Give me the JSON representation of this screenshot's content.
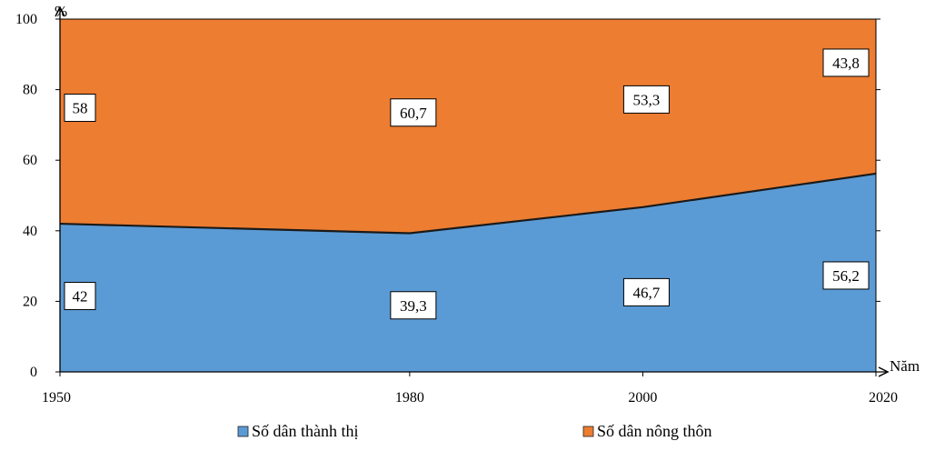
{
  "chart_data": {
    "type": "area",
    "stacked": true,
    "x": [
      1950,
      1980,
      2000,
      2020
    ],
    "x_tick_labels": [
      "1950",
      "1980",
      "2000",
      "2020"
    ],
    "xlim": [
      1950,
      2020
    ],
    "y_tick_labels": [
      "0",
      "20",
      "40",
      "60",
      "80",
      "100"
    ],
    "ylim": [
      0,
      100
    ],
    "xlabel": "Năm",
    "ylabel": "%",
    "grid": false,
    "legend_position": "bottom",
    "series": [
      {
        "name": "Số dân thành thị",
        "values": [
          42,
          39.3,
          46.7,
          56.2
        ],
        "labels": [
          "42",
          "39,3",
          "46,7",
          "56,2"
        ],
        "color": "#5b9bd5"
      },
      {
        "name": "Số dân nông thôn",
        "values": [
          58,
          60.7,
          53.3,
          43.8
        ],
        "labels": [
          "58",
          "60,7",
          "53,3",
          "43,8"
        ],
        "color": "#ed7d31"
      }
    ]
  }
}
